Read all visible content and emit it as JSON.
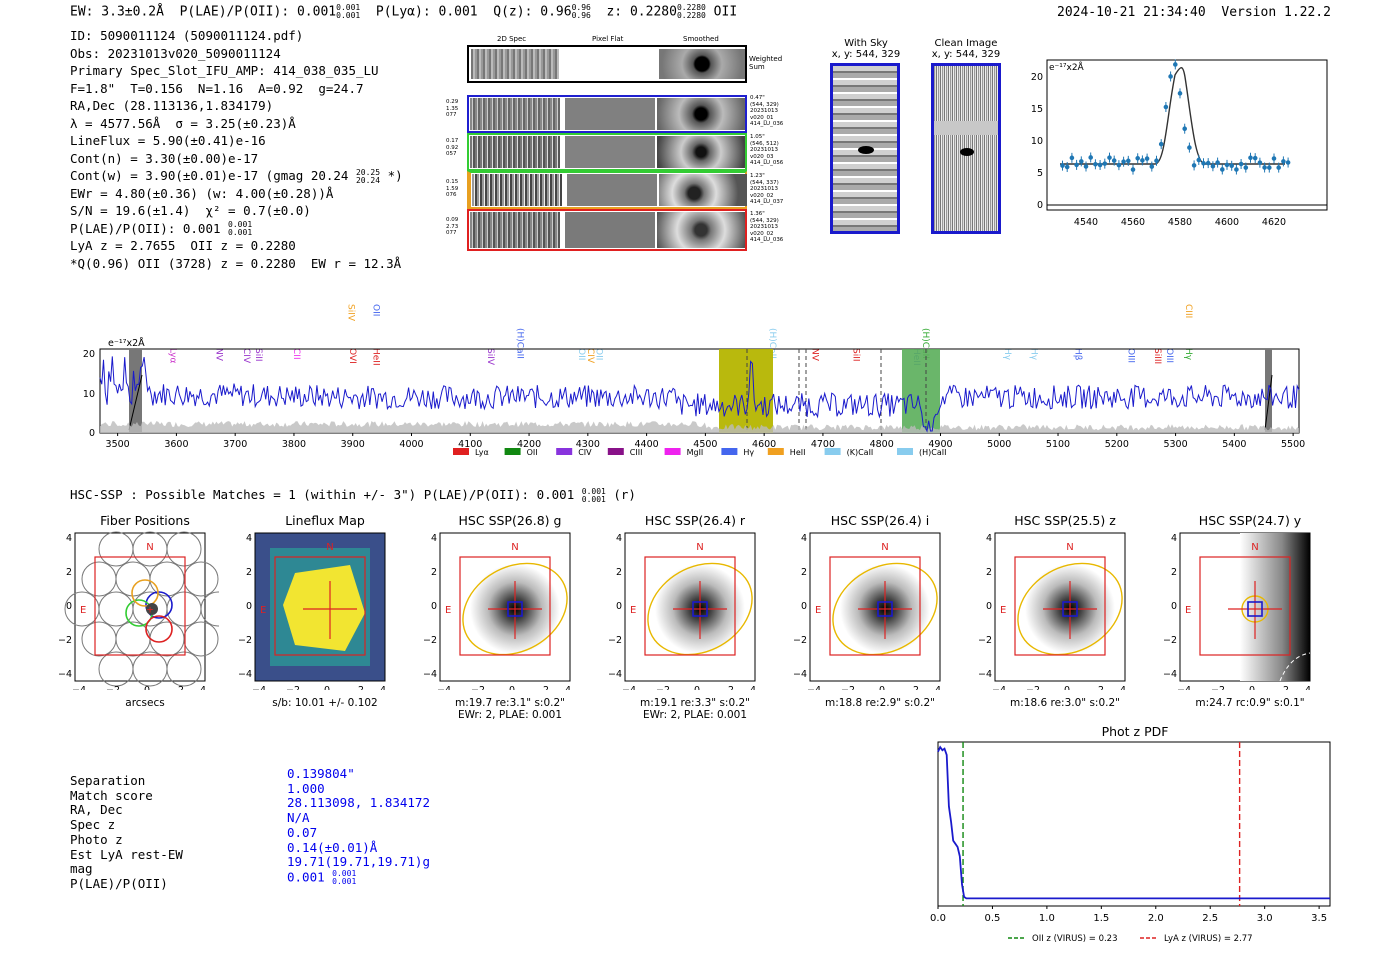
{
  "header": {
    "ew": "EW: 3.3±0.2Å",
    "plae": "P(LAE)/P(OII): 0.001",
    "plae_hi": "0.001",
    "plae_lo": "0.001",
    "plya": "P(Lyα): 0.001",
    "q": "Q(z): 0.96",
    "q_hi": "0.96",
    "q_lo": "0.96",
    "z": "z: 0.2280",
    "z_hi": "0.2280",
    "z_lo": "0.2280",
    "z_line": "OII",
    "timestamp": "2024-10-21 21:34:40",
    "version": "Version 1.22.2"
  },
  "info": {
    "lines": [
      "ID: 5090011124 (5090011124.pdf)",
      "Obs: 20231013v020_5090011124",
      "Primary Spec_Slot_IFU_AMP: 414_038_035_LU",
      "F=1.8\"  T=0.156  N=1.16  A=0.92  g=24.7",
      "RA,Dec (28.113136,1.834179)",
      "λ = 4577.56Å  σ = 3.25(±0.23)Å",
      "LineFlux = 5.90(±0.41)e-16",
      "Cont(n) = 3.30(±0.00)e-17"
    ],
    "cont_w": "Cont(w) = 3.90(±0.01)e-17 (gmag 20.24",
    "cont_w_hi": "20.25",
    "cont_w_lo": "20.24",
    "cont_w_end": " *)",
    "ewr": "EWr = 4.80(±0.36) (w: 4.00(±0.28))Å",
    "sn": "S/N = 19.6(±1.4)  χ² = 0.7(±0.0)",
    "plae": "P(LAE)/P(OII): 0.001",
    "plae_hi": "0.001",
    "plae_lo": "0.001",
    "lya": "LyA z = 2.7655  OII z = 0.2280",
    "q_line": "*Q(0.96) OII (3728) z = 0.2280  EW r = 12.3Å"
  },
  "spec2d": {
    "col_headers": [
      "2D Spec",
      "Pixel Flat",
      "Smoothed"
    ],
    "weighted_label": "Weighted\nSum",
    "rows": [
      {
        "left": "0.29\n1.35\n077",
        "right": "0.47\"\n(544, 329)\n20231013\nv020_01\n414_LU_036",
        "color": "#1f1fcf"
      },
      {
        "left": "0.17\n0.92\n057",
        "right": "1.05\"\n(546, 512)\n20231013\nv020_03\n414_LU_056",
        "color": "#33cc33"
      },
      {
        "left": "0.15\n1.59\n076",
        "right": "1.23\"\n(544, 337)\n20231013\nv020_02\n414_LU_037",
        "color": "#e8a020"
      },
      {
        "left": "0.09\n2.73\n077",
        "right": "1.36\"\n(544, 329)\n20231013\nv020_02\n414_LU_036",
        "color": "#e02020"
      }
    ]
  },
  "sky": {
    "with_sky_title": "With Sky",
    "with_sky_xy": "x, y: 544, 329",
    "clean_title": "Clean Image",
    "clean_xy": "x, y: 544, 329"
  },
  "zoom_plot": {
    "ylabel": "e⁻¹⁷x2Å",
    "xticks": [
      "4540",
      "4560",
      "4580",
      "4600",
      "4620"
    ],
    "yticks": [
      "0",
      "5",
      "10",
      "15",
      "20"
    ]
  },
  "spectrum": {
    "ylabel": "e⁻¹⁷x2Å",
    "xticks": [
      "3500",
      "3600",
      "3700",
      "3800",
      "3900",
      "4000",
      "4100",
      "4200",
      "4300",
      "4400",
      "4500",
      "4600",
      "4700",
      "4800",
      "4900",
      "5000",
      "5100",
      "5200",
      "5300",
      "5400",
      "5500"
    ],
    "yticks": [
      "0",
      "10",
      "20"
    ],
    "line_labels": [
      {
        "name": "SiII",
        "wave": 3528,
        "color": "#f0a020",
        "row": 2
      },
      {
        "name": "Lyα",
        "wave": 3590,
        "color": "#cc33cc",
        "row": 2
      },
      {
        "name": "NV",
        "wave": 3668,
        "color": "#9933cc",
        "row": 2
      },
      {
        "name": "CIV",
        "wave": 3715,
        "color": "#9933cc",
        "row": 2
      },
      {
        "name": "SiII",
        "wave": 3735,
        "color": "#9933cc",
        "row": 2
      },
      {
        "name": "CII",
        "wave": 3800,
        "color": "#ee33ee",
        "row": 2
      },
      {
        "name": "OVI",
        "wave": 3895,
        "color": "#dd2222",
        "row": 2
      },
      {
        "name": "HeII",
        "wave": 3935,
        "color": "#dd2222",
        "row": 2
      },
      {
        "name": "SiIV",
        "wave": 3893,
        "color": "#f0a020",
        "row": 0
      },
      {
        "name": "OII",
        "wave": 3935,
        "color": "#4466ee",
        "row": 0
      },
      {
        "name": "SiIV",
        "wave": 4130,
        "color": "#9933cc",
        "row": 2
      },
      {
        "name": "(H)CaII",
        "wave": 4180,
        "color": "#4466ee",
        "row": 1
      },
      {
        "name": "OII",
        "wave": 4285,
        "color": "#88ccee",
        "row": 2
      },
      {
        "name": "CIV",
        "wave": 4300,
        "color": "#f0a020",
        "row": 2
      },
      {
        "name": "OII",
        "wave": 4315,
        "color": "#88ccee",
        "row": 2
      },
      {
        "name": "(H)CaII",
        "wave": 4610,
        "color": "#88ccee",
        "row": 1
      },
      {
        "name": "NV",
        "wave": 4682,
        "color": "#dd2222",
        "row": 2
      },
      {
        "name": "SiII",
        "wave": 4752,
        "color": "#dd2222",
        "row": 2
      },
      {
        "name": "HeII",
        "wave": 4855,
        "color": "#4466ee",
        "row": 2
      },
      {
        "name": "(H)CaII",
        "wave": 4870,
        "color": "#33aa33",
        "row": 1
      },
      {
        "name": "Hγ",
        "wave": 5010,
        "color": "#88ccee",
        "row": 2
      },
      {
        "name": "Hγ",
        "wave": 5055,
        "color": "#88ccee",
        "row": 2
      },
      {
        "name": "Hβ",
        "wave": 5130,
        "color": "#4466ee",
        "row": 2
      },
      {
        "name": "OIII",
        "wave": 5220,
        "color": "#4466ee",
        "row": 2
      },
      {
        "name": "SiIII",
        "wave": 5265,
        "color": "#dd2222",
        "row": 2
      },
      {
        "name": "OIII",
        "wave": 5285,
        "color": "#4466ee",
        "row": 2
      },
      {
        "name": "CIII",
        "wave": 5318,
        "color": "#f0a020",
        "row": 0
      },
      {
        "name": "Hγ",
        "wave": 5318,
        "color": "#33aa33",
        "row": 2
      }
    ],
    "legend": [
      {
        "label": "Lyα",
        "color": "#e02020"
      },
      {
        "label": "OII",
        "color": "#118811"
      },
      {
        "label": "CIV",
        "color": "#8833dd"
      },
      {
        "label": "CIII",
        "color": "#881188"
      },
      {
        "label": "MgII",
        "color": "#ee22ee"
      },
      {
        "label": "Hγ",
        "color": "#4466ee"
      },
      {
        "label": "HeII",
        "color": "#f0a020"
      },
      {
        "label": "(K)CaII",
        "color": "#88ccee"
      },
      {
        "label": "(H)CaII",
        "color": "#88ccee"
      }
    ]
  },
  "hsc": {
    "title": "HSC-SSP : Possible Matches = 1 (within +/- 3\")  P(LAE)/P(OII): 0.001",
    "title_hi": "0.001",
    "title_lo": "0.001",
    "title_end": " (r)",
    "panels": [
      {
        "title": "Fiber Positions",
        "cap1": "arcsecs",
        "cap2": ""
      },
      {
        "title": "Lineflux Map",
        "cap1": "s/b: 10.01 +/- 0.102",
        "cap2": ""
      },
      {
        "title": "HSC SSP(26.8) g",
        "cap1": "m:19.7  re:3.1\"  s:0.2\"",
        "cap2": "EWr: 2, PLAE: 0.001"
      },
      {
        "title": "HSC SSP(26.4) r",
        "cap1": "m:19.1  re:3.3\"  s:0.2\"",
        "cap2": "EWr: 2, PLAE: 0.001"
      },
      {
        "title": "HSC SSP(26.4) i",
        "cap1": "m:18.8  re:2.9\"  s:0.2\"",
        "cap2": ""
      },
      {
        "title": "HSC SSP(25.5) z",
        "cap1": "m:18.6  re:3.0\"  s:0.2\"",
        "cap2": ""
      },
      {
        "title": "HSC SSP(24.7) y",
        "cap1": "m:24.7  rc:0.9\"  s:0.1\"",
        "cap2": ""
      }
    ],
    "ticks": [
      "−4",
      "−2",
      "0",
      "2",
      "4"
    ],
    "n_label": "N",
    "e_label": "E"
  },
  "match": {
    "labels": [
      "Separation",
      "Match score",
      "RA, Dec",
      "Spec z",
      "Photo z",
      "Est LyA rest-EW",
      "mag",
      "P(LAE)/P(OII)"
    ],
    "values": [
      "0.139804\"",
      "1.000",
      "28.113098, 1.834172",
      "N/A",
      "0.07",
      "0.14(±0.01)Å",
      "19.71(19.71,19.71)g",
      "0.001"
    ],
    "plae_hi": "0.001",
    "plae_lo": "0.001"
  },
  "photz": {
    "title": "Phot z PDF",
    "xticks": [
      "0.0",
      "0.5",
      "1.0",
      "1.5",
      "2.0",
      "2.5",
      "3.0",
      "3.5"
    ],
    "legend_oii": "OII z (VIRUS) = 0.23",
    "legend_lya": "LyA z (VIRUS) = 2.77",
    "oii_z": 0.23,
    "lya_z": 2.77,
    "pdf_x": [
      0.0,
      0.02,
      0.04,
      0.06,
      0.08,
      0.1,
      0.12,
      0.14,
      0.16,
      0.18,
      0.2,
      0.22,
      0.24,
      0.26,
      0.3,
      0.4,
      0.6,
      1.0,
      2.0,
      3.0,
      3.6
    ],
    "pdf_y": [
      0.95,
      0.98,
      0.96,
      0.97,
      0.93,
      0.6,
      0.5,
      0.38,
      0.36,
      0.34,
      0.28,
      0.1,
      0.02,
      0.01,
      0.01,
      0.01,
      0.01,
      0.01,
      0.01,
      0.01,
      0.01
    ]
  },
  "chart_data": {
    "type": "line",
    "title": "1D spectrum",
    "xlabel": "wavelength (Å)",
    "ylabel": "e-17 x2Å",
    "xlim": [
      3470,
      5510
    ],
    "ylim": [
      0,
      21
    ],
    "emission_peak": {
      "x": 4577.56,
      "y": 19
    },
    "zoom_fit": {
      "center": 4577.56,
      "sigma": 3.25,
      "amplitude": 15,
      "continuum": 6.5
    }
  }
}
